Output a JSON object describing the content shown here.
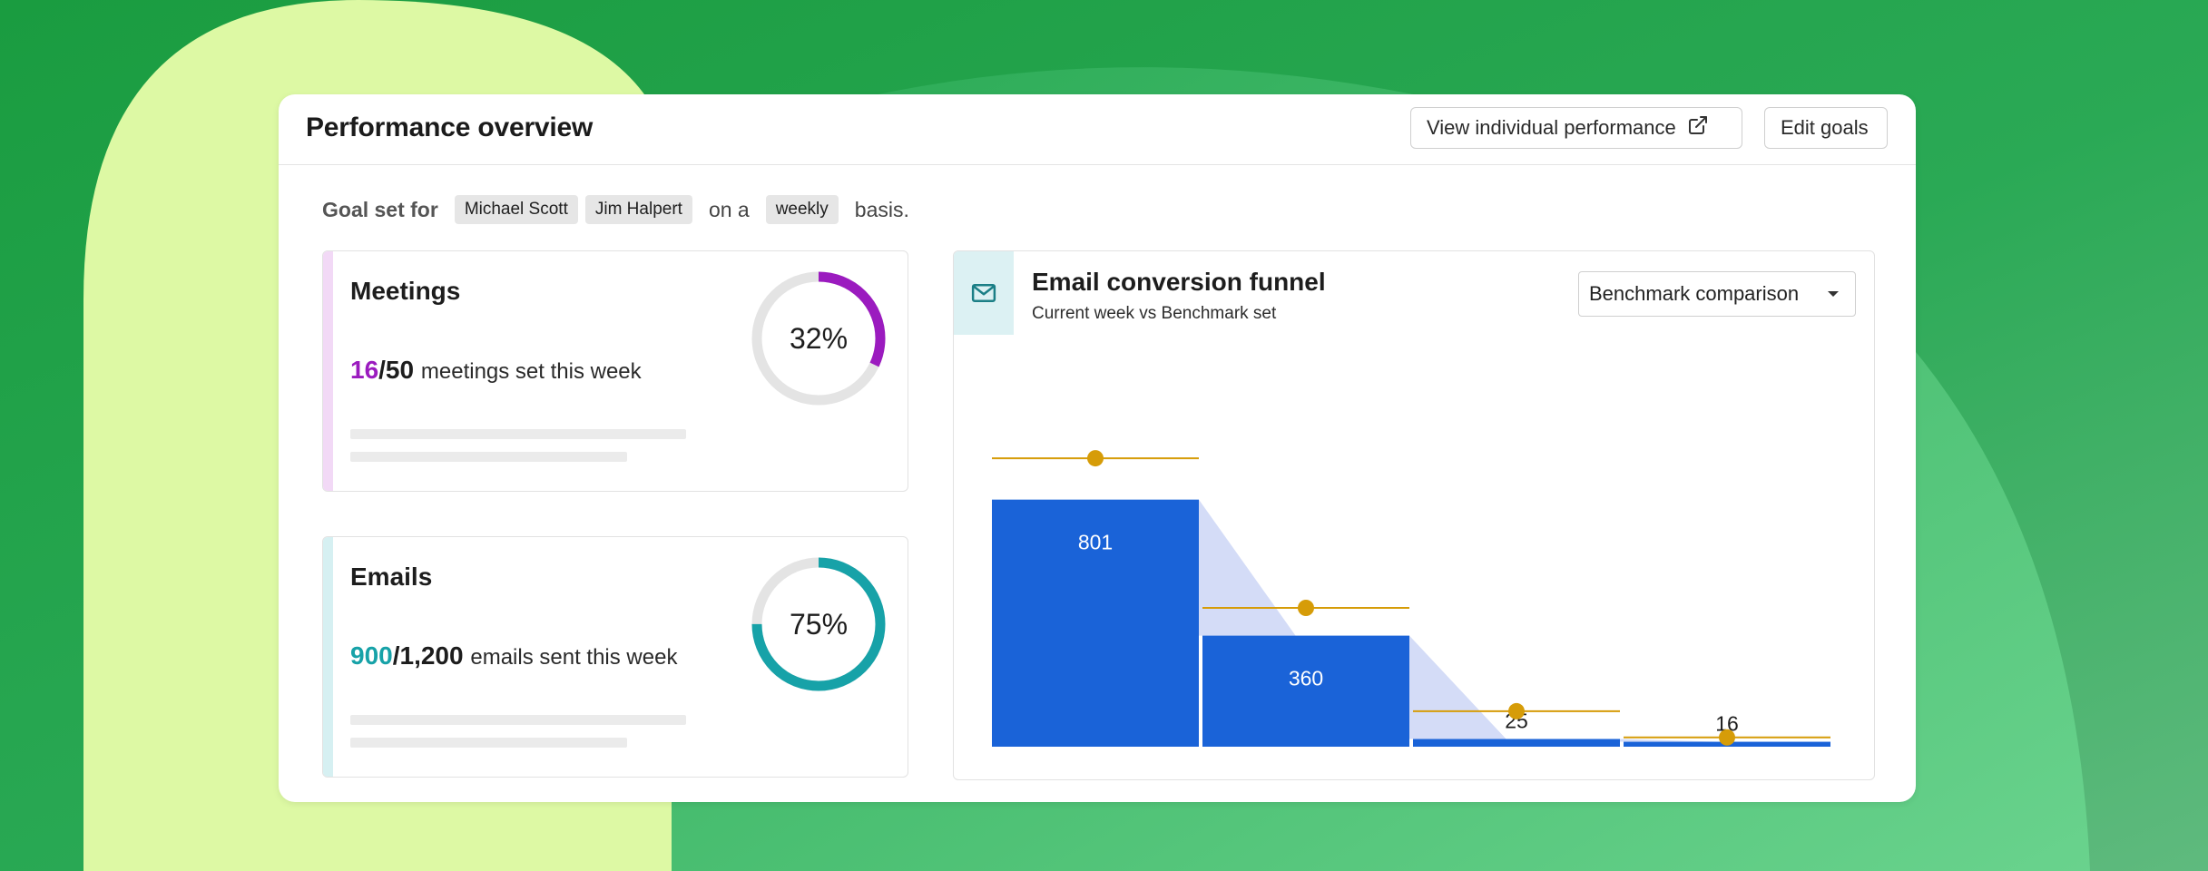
{
  "colors": {
    "bg_green": "#1f9a44",
    "bg_lime": "#ddf9a4",
    "meetings_accent": "#9b1bbf",
    "emails_accent": "#17a2a8",
    "bar_fill": "#1a63d8",
    "funnel_connector": "#d4dcf7",
    "benchmark": "#d69c08"
  },
  "header": {
    "title": "Performance overview",
    "view_button_label": "View individual performance",
    "view_button_icon": "external-link-icon",
    "edit_button_label": "Edit goals"
  },
  "goal": {
    "prefix": "Goal set for",
    "people": [
      "Michael Scott",
      "Jim Halpert"
    ],
    "connector": "on a",
    "period": "weekly",
    "suffix": "basis."
  },
  "meetings": {
    "title": "Meetings",
    "current": "16",
    "total": "/50",
    "label": "meetings set this week",
    "percent_text": "32%",
    "percent": 0.32
  },
  "emails": {
    "title": "Emails",
    "current": "900",
    "total": "/1,200",
    "label": "emails sent this week",
    "percent_text": "75%",
    "percent": 0.75
  },
  "funnel": {
    "icon": "envelope-icon",
    "title": "Email conversion funnel",
    "subtitle": "Current week vs Benchmark set",
    "select_value": "Benchmark comparison"
  },
  "chart_data": {
    "type": "bar",
    "categories": [
      "",
      "",
      "",
      ""
    ],
    "series": [
      {
        "values": [
          801,
          360,
          25,
          16
        ]
      }
    ],
    "benchmark": [
      935,
      450,
      115,
      30
    ],
    "data_labels": [
      "801",
      "360",
      "25",
      "16"
    ],
    "ylim": [
      0,
      1000
    ],
    "grid": false,
    "legend": "none"
  }
}
